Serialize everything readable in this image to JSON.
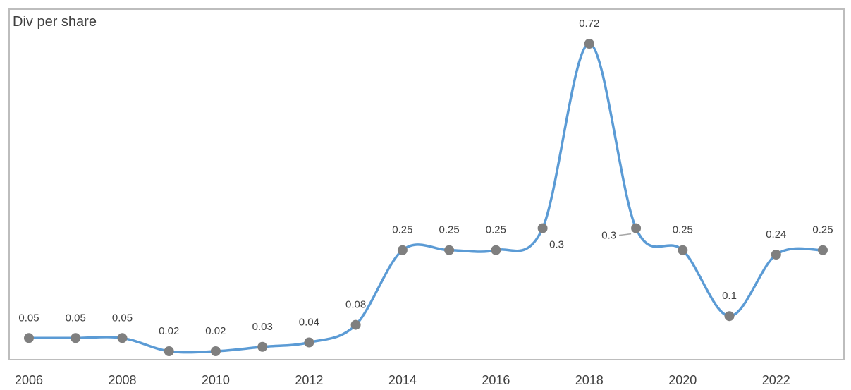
{
  "chart_data": {
    "type": "line",
    "title": "Div per share",
    "xlabel": "",
    "ylabel": "",
    "x": [
      2006,
      2007,
      2008,
      2009,
      2010,
      2011,
      2012,
      2013,
      2014,
      2015,
      2016,
      2017,
      2018,
      2019,
      2020,
      2021,
      2022,
      2023
    ],
    "x_tick_labels": [
      "2006",
      "2008",
      "2010",
      "2012",
      "2014",
      "2016",
      "2018",
      "2020",
      "2022"
    ],
    "series": [
      {
        "values": [
          0.05,
          0.05,
          0.05,
          0.02,
          0.02,
          0.03,
          0.04,
          0.08,
          0.25,
          0.25,
          0.25,
          0.3,
          0.72,
          0.3,
          0.25,
          0.1,
          0.24,
          0.25
        ],
        "labels": [
          "0.05",
          "0.05",
          "0.05",
          "0.02",
          "0.02",
          "0.03",
          "0.04",
          "0.08",
          "0.25",
          "0.25",
          "0.25",
          "0.3",
          "0.72",
          "0.3",
          "0.25",
          "0.1",
          "0.24",
          "0.25"
        ],
        "line_color": "#5b9bd5",
        "marker_color": "#7f7f7f"
      }
    ],
    "smooth": true,
    "grid": false,
    "legend": "none",
    "ylim": [
      0.02,
      0.72
    ]
  }
}
